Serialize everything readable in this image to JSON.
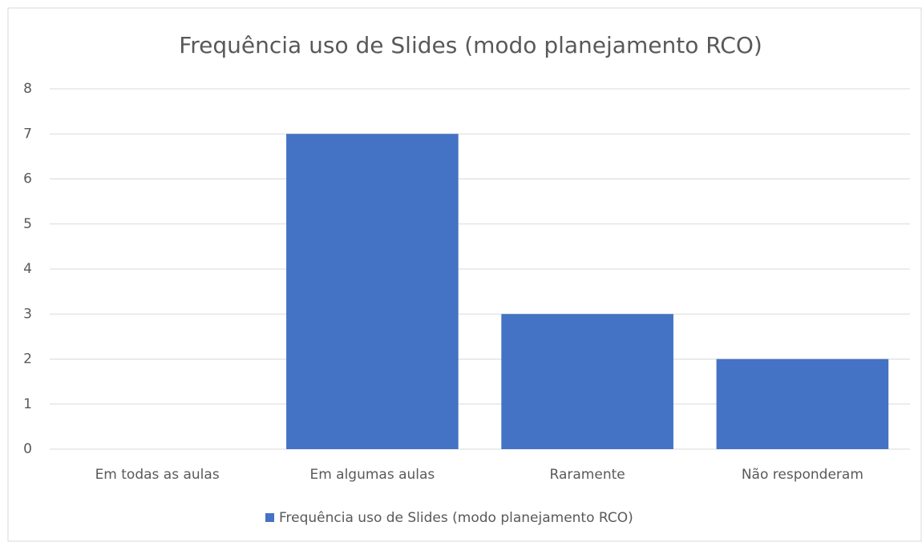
{
  "chart_data": {
    "type": "bar",
    "title": "Frequência uso de Slides (modo planejamento RCO)",
    "categories": [
      "Em todas as aulas",
      "Em algumas aulas",
      "Raramente",
      "Não responderam"
    ],
    "series": [
      {
        "name": "Frequência uso de Slides (modo planejamento RCO)",
        "color": "#4472c4",
        "values": [
          0,
          7,
          3,
          2
        ]
      }
    ],
    "ylim": [
      0,
      8
    ],
    "yticks": [
      0,
      1,
      2,
      3,
      4,
      5,
      6,
      7,
      8
    ],
    "grid": true,
    "legend": "bottom"
  }
}
